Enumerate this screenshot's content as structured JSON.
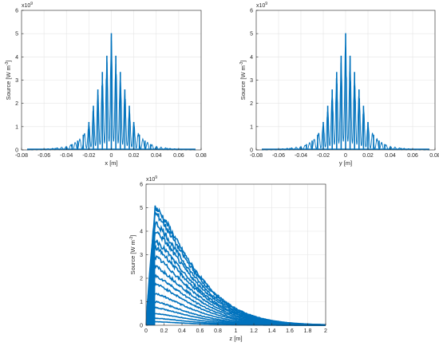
{
  "figure": {
    "colors": {
      "series": "#0072BD",
      "grid": "#E5E5E5",
      "axis": "#262626",
      "background": "#FFFFFF"
    }
  },
  "chart_data": [
    {
      "type": "line",
      "title": "",
      "xlabel": "x [m]",
      "ylabel_base": "Source [W m",
      "ylabel_sup": "-3",
      "ylabel_end": "]",
      "exponent_base": "x10",
      "exponent_sup": "9",
      "xlim": [
        -0.08,
        0.08
      ],
      "ylim": [
        0,
        6
      ],
      "xticks": [
        -0.08,
        -0.06,
        -0.04,
        -0.02,
        0,
        0.02,
        0.04,
        0.06,
        0.08
      ],
      "xtick_labels": [
        "-0.08",
        "-0.06",
        "-0.04",
        "-0.02",
        "0",
        "0.02",
        "0.04",
        "0.06",
        "0.08"
      ],
      "yticks": [
        0,
        1,
        2,
        3,
        4,
        5,
        6
      ],
      "ytick_labels": [
        "0",
        "1",
        "2",
        "3",
        "4",
        "5",
        "6"
      ],
      "grid": true,
      "series": [
        {
          "peak_x": [
            -0.07,
            -0.06,
            -0.05,
            -0.04,
            -0.035,
            -0.03,
            -0.025,
            -0.02,
            -0.016,
            -0.012,
            -0.008,
            -0.004,
            0,
            0.004,
            0.008,
            0.012,
            0.016,
            0.02,
            0.025,
            0.03,
            0.035,
            0.04,
            0.05,
            0.06,
            0.07
          ],
          "peak_y": [
            0.02,
            0.04,
            0.08,
            0.15,
            0.25,
            0.4,
            0.65,
            1.2,
            1.9,
            2.6,
            3.35,
            4.05,
            5.02,
            4.05,
            3.35,
            2.6,
            1.9,
            1.2,
            0.65,
            0.4,
            0.25,
            0.15,
            0.08,
            0.04,
            0.02
          ]
        }
      ]
    },
    {
      "type": "line",
      "title": "",
      "xlabel": "y [m]",
      "ylabel_base": "Source [W m",
      "ylabel_sup": "-3",
      "ylabel_end": "]",
      "exponent_base": "x10",
      "exponent_sup": "9",
      "xlim": [
        -0.08,
        0.08
      ],
      "ylim": [
        0,
        6
      ],
      "xticks": [
        -0.08,
        -0.06,
        -0.04,
        -0.02,
        0,
        0.02,
        0.04,
        0.06,
        0.08
      ],
      "xtick_labels": [
        "-0.08",
        "-0.06",
        "-0.04",
        "-0.02",
        "0",
        "0.02",
        "0.04",
        "0.06",
        "0.08"
      ],
      "yticks": [
        0,
        1,
        2,
        3,
        4,
        5,
        6
      ],
      "ytick_labels": [
        "0",
        "1",
        "2",
        "3",
        "4",
        "5",
        "6"
      ],
      "grid": true,
      "series": [
        {
          "peak_x": [
            -0.07,
            -0.06,
            -0.05,
            -0.04,
            -0.035,
            -0.03,
            -0.025,
            -0.02,
            -0.016,
            -0.012,
            -0.008,
            -0.004,
            0,
            0.004,
            0.008,
            0.012,
            0.016,
            0.02,
            0.025,
            0.03,
            0.035,
            0.04,
            0.05,
            0.06,
            0.07
          ],
          "peak_y": [
            0.02,
            0.04,
            0.08,
            0.15,
            0.25,
            0.4,
            0.65,
            1.2,
            1.9,
            2.6,
            3.35,
            4.05,
            5.02,
            4.05,
            3.35,
            2.6,
            1.9,
            1.2,
            0.65,
            0.4,
            0.25,
            0.15,
            0.08,
            0.04,
            0.02
          ]
        }
      ]
    },
    {
      "type": "line",
      "title": "",
      "xlabel": "z [m]",
      "ylabel_base": "Source [W m",
      "ylabel_sup": "-3",
      "ylabel_end": "]",
      "exponent_base": "x10",
      "exponent_sup": "9",
      "xlim": [
        0,
        2
      ],
      "ylim": [
        0,
        6
      ],
      "xticks": [
        0,
        0.2,
        0.4,
        0.6,
        0.8,
        1,
        1.2,
        1.4,
        1.6,
        1.8,
        2
      ],
      "xtick_labels": [
        "0",
        "0.2",
        "0.4",
        "0.6",
        "0.8",
        "1",
        "1.2",
        "1.4",
        "1.6",
        "1.8",
        "2"
      ],
      "yticks": [
        0,
        1,
        2,
        3,
        4,
        5,
        6
      ],
      "ytick_labels": [
        "0",
        "1",
        "2",
        "3",
        "4",
        "5",
        "6"
      ],
      "grid": true,
      "series": [
        {
          "peak_x": 0.1,
          "peak_levels": [
            5.0,
            4.75,
            4.35,
            4.0,
            3.6,
            3.3,
            2.9,
            2.5,
            2.1,
            1.75,
            1.35,
            1.0,
            0.75,
            0.5,
            0.3,
            0.15
          ]
        }
      ]
    }
  ]
}
